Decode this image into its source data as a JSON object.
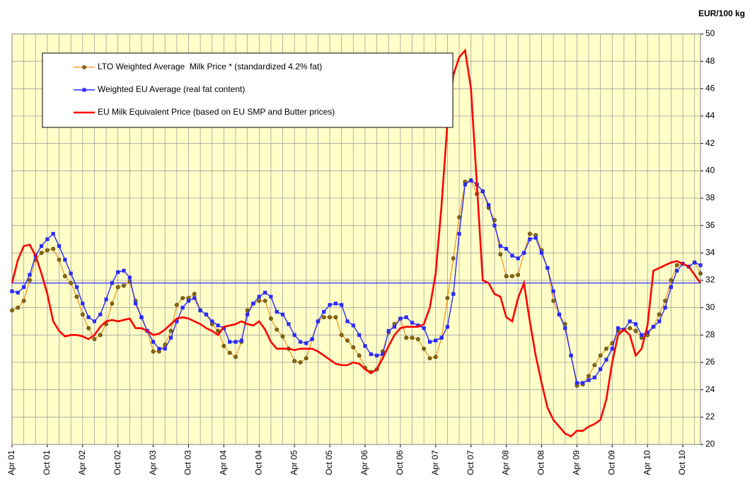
{
  "chart_data": {
    "type": "line",
    "y_axis_label": "EUR/100 kg",
    "categories": [
      "Apr 01",
      null,
      null,
      null,
      null,
      null,
      "Oct 01",
      null,
      null,
      null,
      null,
      null,
      "Apr 02",
      null,
      null,
      null,
      null,
      null,
      "Oct 02",
      null,
      null,
      null,
      null,
      null,
      "Apr 03",
      null,
      null,
      null,
      null,
      null,
      "Oct 03",
      null,
      null,
      null,
      null,
      null,
      "Apr 04",
      null,
      null,
      null,
      null,
      null,
      "Oct 04",
      null,
      null,
      null,
      null,
      null,
      "Apr 05",
      null,
      null,
      null,
      null,
      null,
      "Oct 05",
      null,
      null,
      null,
      null,
      null,
      "Apr 06",
      null,
      null,
      null,
      null,
      null,
      "Oct 06",
      null,
      null,
      null,
      null,
      null,
      "Apr 07",
      null,
      null,
      null,
      null,
      null,
      "Oct 07",
      null,
      null,
      null,
      null,
      null,
      "Apr 08",
      null,
      null,
      null,
      null,
      null,
      "Oct 08",
      null,
      null,
      null,
      null,
      null,
      "Apr 09",
      null,
      null,
      null,
      null,
      null,
      "Oct 09",
      null,
      null,
      null,
      null,
      null,
      "Apr 10",
      null,
      null,
      null,
      null,
      null,
      "Oct 10",
      null,
      null,
      null
    ],
    "series": [
      {
        "name": "LTO Weighted Average  Milk Price * (standardized 4.2% fat)",
        "color": "#f0a030",
        "marker": "circle",
        "marker_color": "#8b6a10",
        "values": [
          29.8,
          30.0,
          30.5,
          32.0,
          33.5,
          34.0,
          34.2,
          34.3,
          33.5,
          32.3,
          31.8,
          30.8,
          29.5,
          28.5,
          27.7,
          28.0,
          28.8,
          30.3,
          31.5,
          31.6,
          31.9,
          30.5,
          29.3,
          28.3,
          26.8,
          26.8,
          27.3,
          28.3,
          30.2,
          30.7,
          30.7,
          31.0,
          29.8,
          29.5,
          28.8,
          28.3,
          27.2,
          26.7,
          26.4,
          27.5,
          29.8,
          30.3,
          30.5,
          30.5,
          29.2,
          28.4,
          27.9,
          27.0,
          26.1,
          26.0,
          26.3,
          27.7,
          29.0,
          29.3,
          29.3,
          29.3,
          28.0,
          27.6,
          27.1,
          26.5,
          25.6,
          25.3,
          25.5,
          26.8,
          28.2,
          28.8,
          29.2,
          27.8,
          27.8,
          27.7,
          27.0,
          26.3,
          26.4,
          27.8,
          30.7,
          33.6,
          36.6,
          39.2,
          39.3,
          38.3,
          38.5,
          37.3,
          36.4,
          33.9,
          32.3,
          32.3,
          32.4,
          34.0,
          35.4,
          35.3,
          34.2,
          32.9,
          30.5,
          29.5,
          28.8,
          26.5,
          24.3,
          24.4,
          25.0,
          25.8,
          26.5,
          27.0,
          27.4,
          28.3,
          28.4,
          28.5,
          28.3,
          27.8,
          28.0,
          28.6,
          29.5,
          30.5,
          32.0,
          33.1,
          33.2,
          33.0,
          33.3,
          32.5
        ]
      },
      {
        "name": "Weighted EU Average (real fat content)",
        "color": "#2a2aff",
        "marker": "square",
        "marker_color": "#2a2aff",
        "values": [
          31.2,
          31.1,
          31.5,
          32.4,
          33.8,
          34.5,
          35.0,
          35.4,
          34.5,
          33.5,
          32.5,
          31.5,
          30.3,
          29.3,
          29.0,
          29.5,
          30.6,
          31.8,
          32.6,
          32.7,
          32.2,
          30.3,
          29.3,
          28.3,
          27.5,
          27.0,
          27.0,
          27.8,
          29.0,
          30.0,
          30.5,
          30.7,
          29.8,
          29.5,
          29.0,
          28.7,
          28.5,
          27.5,
          27.5,
          27.6,
          29.5,
          30.3,
          30.8,
          31.1,
          30.8,
          29.7,
          29.5,
          28.8,
          28.0,
          27.5,
          27.4,
          27.7,
          29.0,
          29.7,
          30.2,
          30.3,
          30.2,
          29.0,
          28.7,
          28.0,
          27.2,
          26.6,
          26.5,
          26.6,
          28.3,
          28.6,
          29.2,
          29.3,
          28.9,
          28.7,
          28.5,
          27.5,
          27.6,
          27.8,
          28.6,
          31.0,
          35.4,
          39.0,
          39.3,
          39.0,
          38.5,
          37.5,
          36.0,
          34.5,
          34.3,
          33.8,
          33.6,
          34.0,
          35.0,
          35.1,
          34.0,
          32.9,
          31.2,
          29.5,
          28.5,
          26.5,
          24.5,
          24.5,
          24.7,
          24.9,
          25.5,
          26.2,
          27.0,
          28.5,
          28.4,
          29.0,
          28.8,
          28.0,
          28.2,
          28.6,
          29.0,
          30.0,
          31.5,
          32.7,
          33.2,
          33.0,
          33.3,
          33.1
        ]
      },
      {
        "name": "EU Milk Equivalent Price (based on EU SMP and Butter prices)",
        "color": "#ff0000",
        "marker": "none",
        "values": [
          31.8,
          33.5,
          34.5,
          34.6,
          33.8,
          32.5,
          31.0,
          29.0,
          28.3,
          27.9,
          28.0,
          28.0,
          27.9,
          27.7,
          28.0,
          28.6,
          29.0,
          29.1,
          29.0,
          29.1,
          29.2,
          28.5,
          28.5,
          28.3,
          28.0,
          28.1,
          28.4,
          28.8,
          29.2,
          29.3,
          29.2,
          29.0,
          28.8,
          28.5,
          28.3,
          28.0,
          28.6,
          28.7,
          28.8,
          29.0,
          28.8,
          28.7,
          29.0,
          28.4,
          27.5,
          27.0,
          27.0,
          27.0,
          26.9,
          27.0,
          27.0,
          27.0,
          26.8,
          26.5,
          26.2,
          25.9,
          25.8,
          25.8,
          26.0,
          25.9,
          25.5,
          25.2,
          25.5,
          26.3,
          27.2,
          28.0,
          28.5,
          28.6,
          28.6,
          28.6,
          28.8,
          30.0,
          32.5,
          37.5,
          43.5,
          47.0,
          48.3,
          48.8,
          46.0,
          39.0,
          32.0,
          31.8,
          31.0,
          30.8,
          29.3,
          29.0,
          30.7,
          31.8,
          29.0,
          26.5,
          24.5,
          22.7,
          21.8,
          21.3,
          20.8,
          20.6,
          21.0,
          21.0,
          21.3,
          21.5,
          21.8,
          23.3,
          26.0,
          28.0,
          28.4,
          28.0,
          26.5,
          27.0,
          28.7,
          32.7,
          32.9,
          33.1,
          33.3,
          33.4,
          33.2,
          33.0,
          32.4,
          31.8
        ]
      }
    ],
    "reference_line": {
      "value": 31.8,
      "color": "#2a2aff"
    },
    "ylim": [
      20,
      50
    ],
    "yticks": [
      20,
      22,
      24,
      26,
      28,
      30,
      32,
      34,
      36,
      38,
      40,
      42,
      44,
      46,
      48,
      50
    ],
    "grid": true,
    "background": "#ffffc8",
    "legend_position": "upper left"
  }
}
